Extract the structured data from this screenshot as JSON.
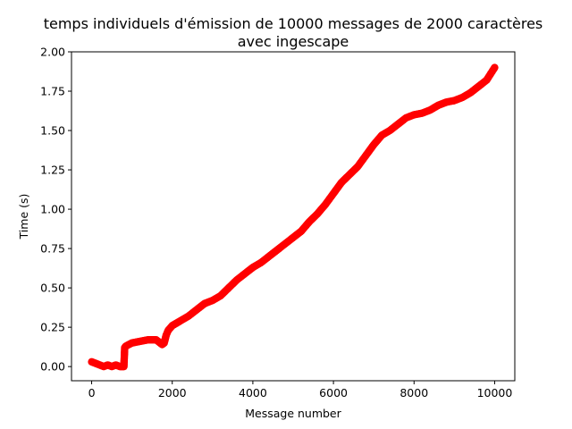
{
  "chart_data": {
    "type": "scatter",
    "title_line1": "temps individuels d'émission de 10000 messages de 2000 caractères",
    "title_line2": "avec ingescape",
    "xlabel": "Message number",
    "ylabel": "Time (s)",
    "xlim": [
      -500,
      10500
    ],
    "ylim": [
      -0.09,
      2.0
    ],
    "xticks": [
      0,
      2000,
      4000,
      6000,
      8000,
      10000
    ],
    "xtick_labels": [
      "0",
      "2000",
      "4000",
      "6000",
      "8000",
      "10000"
    ],
    "yticks": [
      0.0,
      0.25,
      0.5,
      0.75,
      1.0,
      1.25,
      1.5,
      1.75,
      2.0
    ],
    "ytick_labels": [
      "0.00",
      "0.25",
      "0.50",
      "0.75",
      "1.00",
      "1.25",
      "1.50",
      "1.75",
      "2.00"
    ],
    "grid": false,
    "marker_color": "#ff0000",
    "series": [
      {
        "x": [
          0,
          100,
          200,
          300,
          400,
          500,
          600,
          700,
          800,
          820,
          850,
          1000,
          1200,
          1400,
          1500,
          1600,
          1700,
          1750,
          1800,
          1850,
          1900,
          2000,
          2200,
          2400,
          2600,
          2800,
          3000,
          3200,
          3400,
          3600,
          3800,
          4000,
          4200,
          4400,
          4600,
          4800,
          5000,
          5200,
          5400,
          5600,
          5800,
          6000,
          6200,
          6400,
          6600,
          6800,
          7000,
          7200,
          7400,
          7600,
          7800,
          8000,
          8200,
          8400,
          8600,
          8800,
          9000,
          9200,
          9400,
          9600,
          9800,
          9900,
          10000
        ],
        "y": [
          0.03,
          0.02,
          0.01,
          0.0,
          0.01,
          0.0,
          0.01,
          0.0,
          0.0,
          0.12,
          0.13,
          0.15,
          0.16,
          0.17,
          0.17,
          0.17,
          0.15,
          0.14,
          0.15,
          0.2,
          0.23,
          0.26,
          0.29,
          0.32,
          0.36,
          0.4,
          0.42,
          0.45,
          0.5,
          0.55,
          0.59,
          0.63,
          0.66,
          0.7,
          0.74,
          0.78,
          0.82,
          0.86,
          0.92,
          0.97,
          1.03,
          1.1,
          1.17,
          1.22,
          1.27,
          1.34,
          1.41,
          1.47,
          1.5,
          1.54,
          1.58,
          1.6,
          1.61,
          1.63,
          1.66,
          1.68,
          1.69,
          1.71,
          1.74,
          1.78,
          1.82,
          1.86,
          1.9
        ]
      }
    ]
  }
}
